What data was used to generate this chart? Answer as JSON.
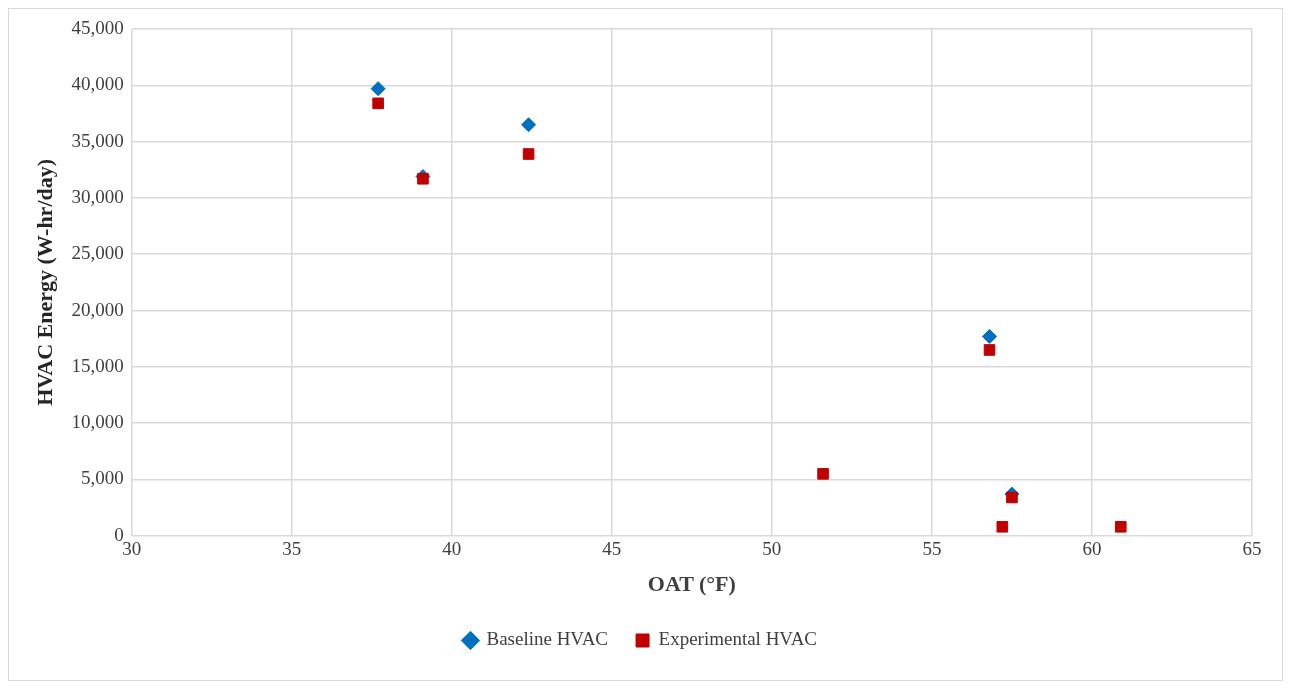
{
  "chart_data": {
    "type": "scatter",
    "xlabel": "OAT (°F)",
    "ylabel": "HVAC Energy (W-hr/day)",
    "x": [
      37.7,
      39.1,
      42.4,
      51.6,
      56.8,
      57.2,
      57.5,
      60.9
    ],
    "series": [
      {
        "name": "Baseline HVAC",
        "color": "#0070c0",
        "marker": "diamond",
        "values": [
          39700,
          31900,
          36500,
          null,
          17700,
          null,
          3700,
          null
        ]
      },
      {
        "name": "Experimental HVAC",
        "color": "#c00000",
        "marker": "square",
        "values": [
          38400,
          31700,
          33900,
          5500,
          16500,
          800,
          3400,
          800
        ]
      }
    ],
    "xlim": [
      30,
      65
    ],
    "xticks": [
      30,
      35,
      40,
      45,
      50,
      55,
      60,
      65
    ],
    "ylim": [
      0,
      45000
    ],
    "yticks": [
      0,
      {
        "value": 5000,
        "label": "5,000"
      },
      {
        "value": 10000,
        "label": "10,000"
      },
      {
        "value": 15000,
        "label": "15,000"
      },
      {
        "value": 20000,
        "label": "20,000"
      },
      {
        "value": 25000,
        "label": "25,000"
      },
      {
        "value": 30000,
        "label": "30,000"
      },
      {
        "value": 35000,
        "label": "35,000"
      },
      {
        "value": 40000,
        "label": "40,000"
      },
      {
        "value": 45000,
        "label": "45,000"
      }
    ],
    "grid": true,
    "legend": "bottom"
  }
}
